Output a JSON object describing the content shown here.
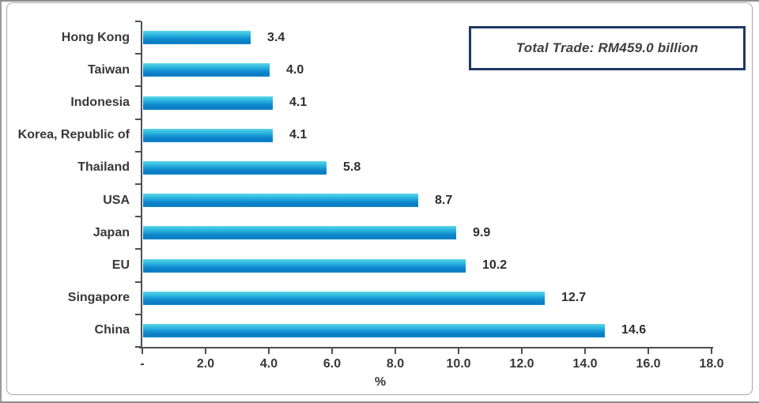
{
  "page": {
    "background_color": "#FFFFFF",
    "outer_border_color": "#8C8C8C",
    "frame_border_color": "#A6A6A6"
  },
  "annotation_box": {
    "text": "Total Trade: RM459.0 billion",
    "border_color": "#1F3864",
    "text_color": "#404040"
  },
  "chart_data": {
    "type": "bar",
    "orientation": "horizontal",
    "title": "",
    "xlabel": "%",
    "ylabel": "",
    "categories": [
      "Hong Kong",
      "Taiwan",
      "Indonesia",
      "Korea, Republic of",
      "Thailand",
      "USA",
      "Japan",
      "EU",
      "Singapore",
      "China"
    ],
    "values": [
      3.4,
      4.0,
      4.1,
      4.1,
      5.8,
      8.7,
      9.9,
      10.2,
      12.7,
      14.6
    ],
    "value_labels": [
      "3.4",
      "4.0",
      "4.1",
      "4.1",
      "5.8",
      "8.7",
      "9.9",
      "10.2",
      "12.7",
      "14.6"
    ],
    "xlim": [
      0,
      18
    ],
    "x_tick_values": [
      0,
      2,
      4,
      6,
      8,
      10,
      12,
      14,
      16,
      18
    ],
    "x_tick_labels": [
      "-",
      "2.0",
      "4.0",
      "6.0",
      "8.0",
      "10.0",
      "12.0",
      "14.0",
      "16.0",
      "18.0"
    ],
    "grid": false,
    "legend": false,
    "annotation": "Total Trade: RM459.0 billion",
    "bar_gradient": [
      "#5CD6E7",
      "#2DB6DF",
      "#0E87CD",
      "#0B7AC2",
      "#1489CC"
    ],
    "axis_color": "#4F4F4F",
    "label_color": "#383838"
  }
}
